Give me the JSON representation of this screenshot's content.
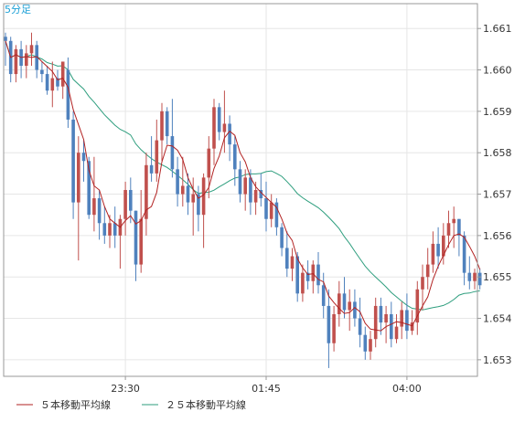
{
  "title": "5分足",
  "colors": {
    "bull": "#c0504d",
    "bear": "#4f81bd",
    "ma5": "#b22222",
    "ma25": "#2e9e7e",
    "grid": "#e6e6e6",
    "axis": "#999999"
  },
  "chart_data": {
    "type": "candlestick",
    "title": "5分足",
    "ylim": [
      1.6526,
      1.6616
    ],
    "y_ticks": [
      "1.653",
      "1.654",
      "1.655",
      "1.656",
      "1.657",
      "1.658",
      "1.659",
      "1.660",
      "1.661"
    ],
    "x_ticks": [
      {
        "index": 23,
        "label": "23:30"
      },
      {
        "index": 50,
        "label": "01:45"
      },
      {
        "index": 77,
        "label": "04:00"
      }
    ],
    "grid": true,
    "legend_position": "bottom-left",
    "legend": [
      {
        "label": "５本移動平均線",
        "color": "#b22222"
      },
      {
        "label": "２５本移動平均線",
        "color": "#2e9e7e"
      }
    ],
    "candles": [
      [
        1.6608,
        1.6609,
        1.6601,
        1.6607
      ],
      [
        1.6607,
        1.6608,
        1.6597,
        1.6599
      ],
      [
        1.6599,
        1.6606,
        1.6597,
        1.6605
      ],
      [
        1.6605,
        1.6607,
        1.6598,
        1.6601
      ],
      [
        1.6601,
        1.6606,
        1.6598,
        1.6604
      ],
      [
        1.6604,
        1.6609,
        1.6601,
        1.6606
      ],
      [
        1.6606,
        1.6607,
        1.6598,
        1.66
      ],
      [
        1.66,
        1.6602,
        1.6597,
        1.6599
      ],
      [
        1.6599,
        1.6601,
        1.6594,
        1.6595
      ],
      [
        1.6595,
        1.6602,
        1.6591,
        1.6598
      ],
      [
        1.6598,
        1.66,
        1.6595,
        1.6596
      ],
      [
        1.6596,
        1.6602,
        1.6593,
        1.6602
      ],
      [
        1.66,
        1.6603,
        1.6586,
        1.6588
      ],
      [
        1.6588,
        1.659,
        1.6564,
        1.6568
      ],
      [
        1.6568,
        1.6584,
        1.6554,
        1.658
      ],
      [
        1.658,
        1.6583,
        1.6573,
        1.6578
      ],
      [
        1.6578,
        1.6579,
        1.6564,
        1.6565
      ],
      [
        1.6565,
        1.6579,
        1.6561,
        1.6569
      ],
      [
        1.6569,
        1.6571,
        1.6559,
        1.6563
      ],
      [
        1.6563,
        1.6567,
        1.6558,
        1.656
      ],
      [
        1.656,
        1.6565,
        1.6557,
        1.6563
      ],
      [
        1.6563,
        1.6567,
        1.6557,
        1.656
      ],
      [
        1.656,
        1.6565,
        1.6552,
        1.6564
      ],
      [
        1.6564,
        1.6573,
        1.656,
        1.6571
      ],
      [
        1.6571,
        1.6574,
        1.6563,
        1.6566
      ],
      [
        1.6566,
        1.6566,
        1.6549,
        1.6553
      ],
      [
        1.6553,
        1.6571,
        1.6551,
        1.6564
      ],
      [
        1.6564,
        1.658,
        1.656,
        1.6577
      ],
      [
        1.6577,
        1.6584,
        1.6573,
        1.6575
      ],
      [
        1.6575,
        1.6588,
        1.6573,
        1.6583
      ],
      [
        1.6583,
        1.6592,
        1.6578,
        1.659
      ],
      [
        1.659,
        1.6591,
        1.6582,
        1.6584
      ],
      [
        1.6584,
        1.6593,
        1.6574,
        1.6576
      ],
      [
        1.6576,
        1.6579,
        1.6567,
        1.657
      ],
      [
        1.657,
        1.6579,
        1.6567,
        1.6572
      ],
      [
        1.6572,
        1.6575,
        1.6565,
        1.6568
      ],
      [
        1.6568,
        1.6574,
        1.656,
        1.657
      ],
      [
        1.657,
        1.6572,
        1.6561,
        1.6565
      ],
      [
        1.6565,
        1.6575,
        1.6557,
        1.6574
      ],
      [
        1.6574,
        1.6584,
        1.6569,
        1.6581
      ],
      [
        1.6581,
        1.6593,
        1.6577,
        1.6591
      ],
      [
        1.6591,
        1.6592,
        1.6583,
        1.6585
      ],
      [
        1.6585,
        1.6595,
        1.658,
        1.6587
      ],
      [
        1.6587,
        1.6589,
        1.6578,
        1.6582
      ],
      [
        1.6582,
        1.6584,
        1.6572,
        1.6576
      ],
      [
        1.6576,
        1.6578,
        1.6568,
        1.657
      ],
      [
        1.657,
        1.6576,
        1.6566,
        1.6574
      ],
      [
        1.6574,
        1.6576,
        1.6565,
        1.6568
      ],
      [
        1.6568,
        1.6573,
        1.6565,
        1.6571
      ],
      [
        1.6571,
        1.6575,
        1.6567,
        1.6569
      ],
      [
        1.6569,
        1.6573,
        1.6561,
        1.6564
      ],
      [
        1.6564,
        1.657,
        1.6562,
        1.6568
      ],
      [
        1.6568,
        1.6569,
        1.656,
        1.6562
      ],
      [
        1.6562,
        1.6563,
        1.6555,
        1.6557
      ],
      [
        1.6557,
        1.6561,
        1.655,
        1.6552
      ],
      [
        1.6552,
        1.6557,
        1.6549,
        1.6555
      ],
      [
        1.6555,
        1.6556,
        1.6544,
        1.6546
      ],
      [
        1.6546,
        1.6553,
        1.6544,
        1.6551
      ],
      [
        1.6551,
        1.6554,
        1.6547,
        1.6549
      ],
      [
        1.6549,
        1.6554,
        1.6546,
        1.6553
      ],
      [
        1.6553,
        1.6556,
        1.6546,
        1.6548
      ],
      [
        1.6548,
        1.6551,
        1.654,
        1.6543
      ],
      [
        1.6543,
        1.6547,
        1.6528,
        1.6534
      ],
      [
        1.6534,
        1.6543,
        1.6532,
        1.6541
      ],
      [
        1.6541,
        1.6549,
        1.6538,
        1.6546
      ],
      [
        1.6546,
        1.655,
        1.654,
        1.6542
      ],
      [
        1.6542,
        1.6547,
        1.6537,
        1.6544
      ],
      [
        1.6544,
        1.6547,
        1.6538,
        1.654
      ],
      [
        1.654,
        1.6545,
        1.6533,
        1.6536
      ],
      [
        1.6536,
        1.6538,
        1.653,
        1.6532
      ],
      [
        1.6532,
        1.6537,
        1.653,
        1.6535
      ],
      [
        1.6535,
        1.6545,
        1.6533,
        1.6543
      ],
      [
        1.6543,
        1.6545,
        1.6536,
        1.6539
      ],
      [
        1.6539,
        1.6543,
        1.6534,
        1.6541
      ],
      [
        1.6541,
        1.6544,
        1.6533,
        1.6535
      ],
      [
        1.6535,
        1.6541,
        1.6534,
        1.6538
      ],
      [
        1.6538,
        1.6544,
        1.6535,
        1.6542
      ],
      [
        1.6542,
        1.6546,
        1.6535,
        1.6537
      ],
      [
        1.6537,
        1.6542,
        1.6536,
        1.6539
      ],
      [
        1.6539,
        1.6549,
        1.6536,
        1.6547
      ],
      [
        1.6547,
        1.6553,
        1.6542,
        1.655
      ],
      [
        1.655,
        1.6557,
        1.6547,
        1.6553
      ],
      [
        1.6553,
        1.6561,
        1.6551,
        1.6558
      ],
      [
        1.6558,
        1.6562,
        1.6552,
        1.6555
      ],
      [
        1.6555,
        1.6563,
        1.6553,
        1.656
      ],
      [
        1.656,
        1.6566,
        1.6557,
        1.6563
      ],
      [
        1.6563,
        1.6567,
        1.6557,
        1.6564
      ],
      [
        1.6564,
        1.6564,
        1.6555,
        1.656
      ],
      [
        1.656,
        1.6561,
        1.6548,
        1.6551
      ],
      [
        1.6551,
        1.6555,
        1.6547,
        1.6549
      ],
      [
        1.6549,
        1.6552,
        1.6547,
        1.6551
      ],
      [
        1.6551,
        1.6552,
        1.6547,
        1.6548
      ]
    ]
  }
}
